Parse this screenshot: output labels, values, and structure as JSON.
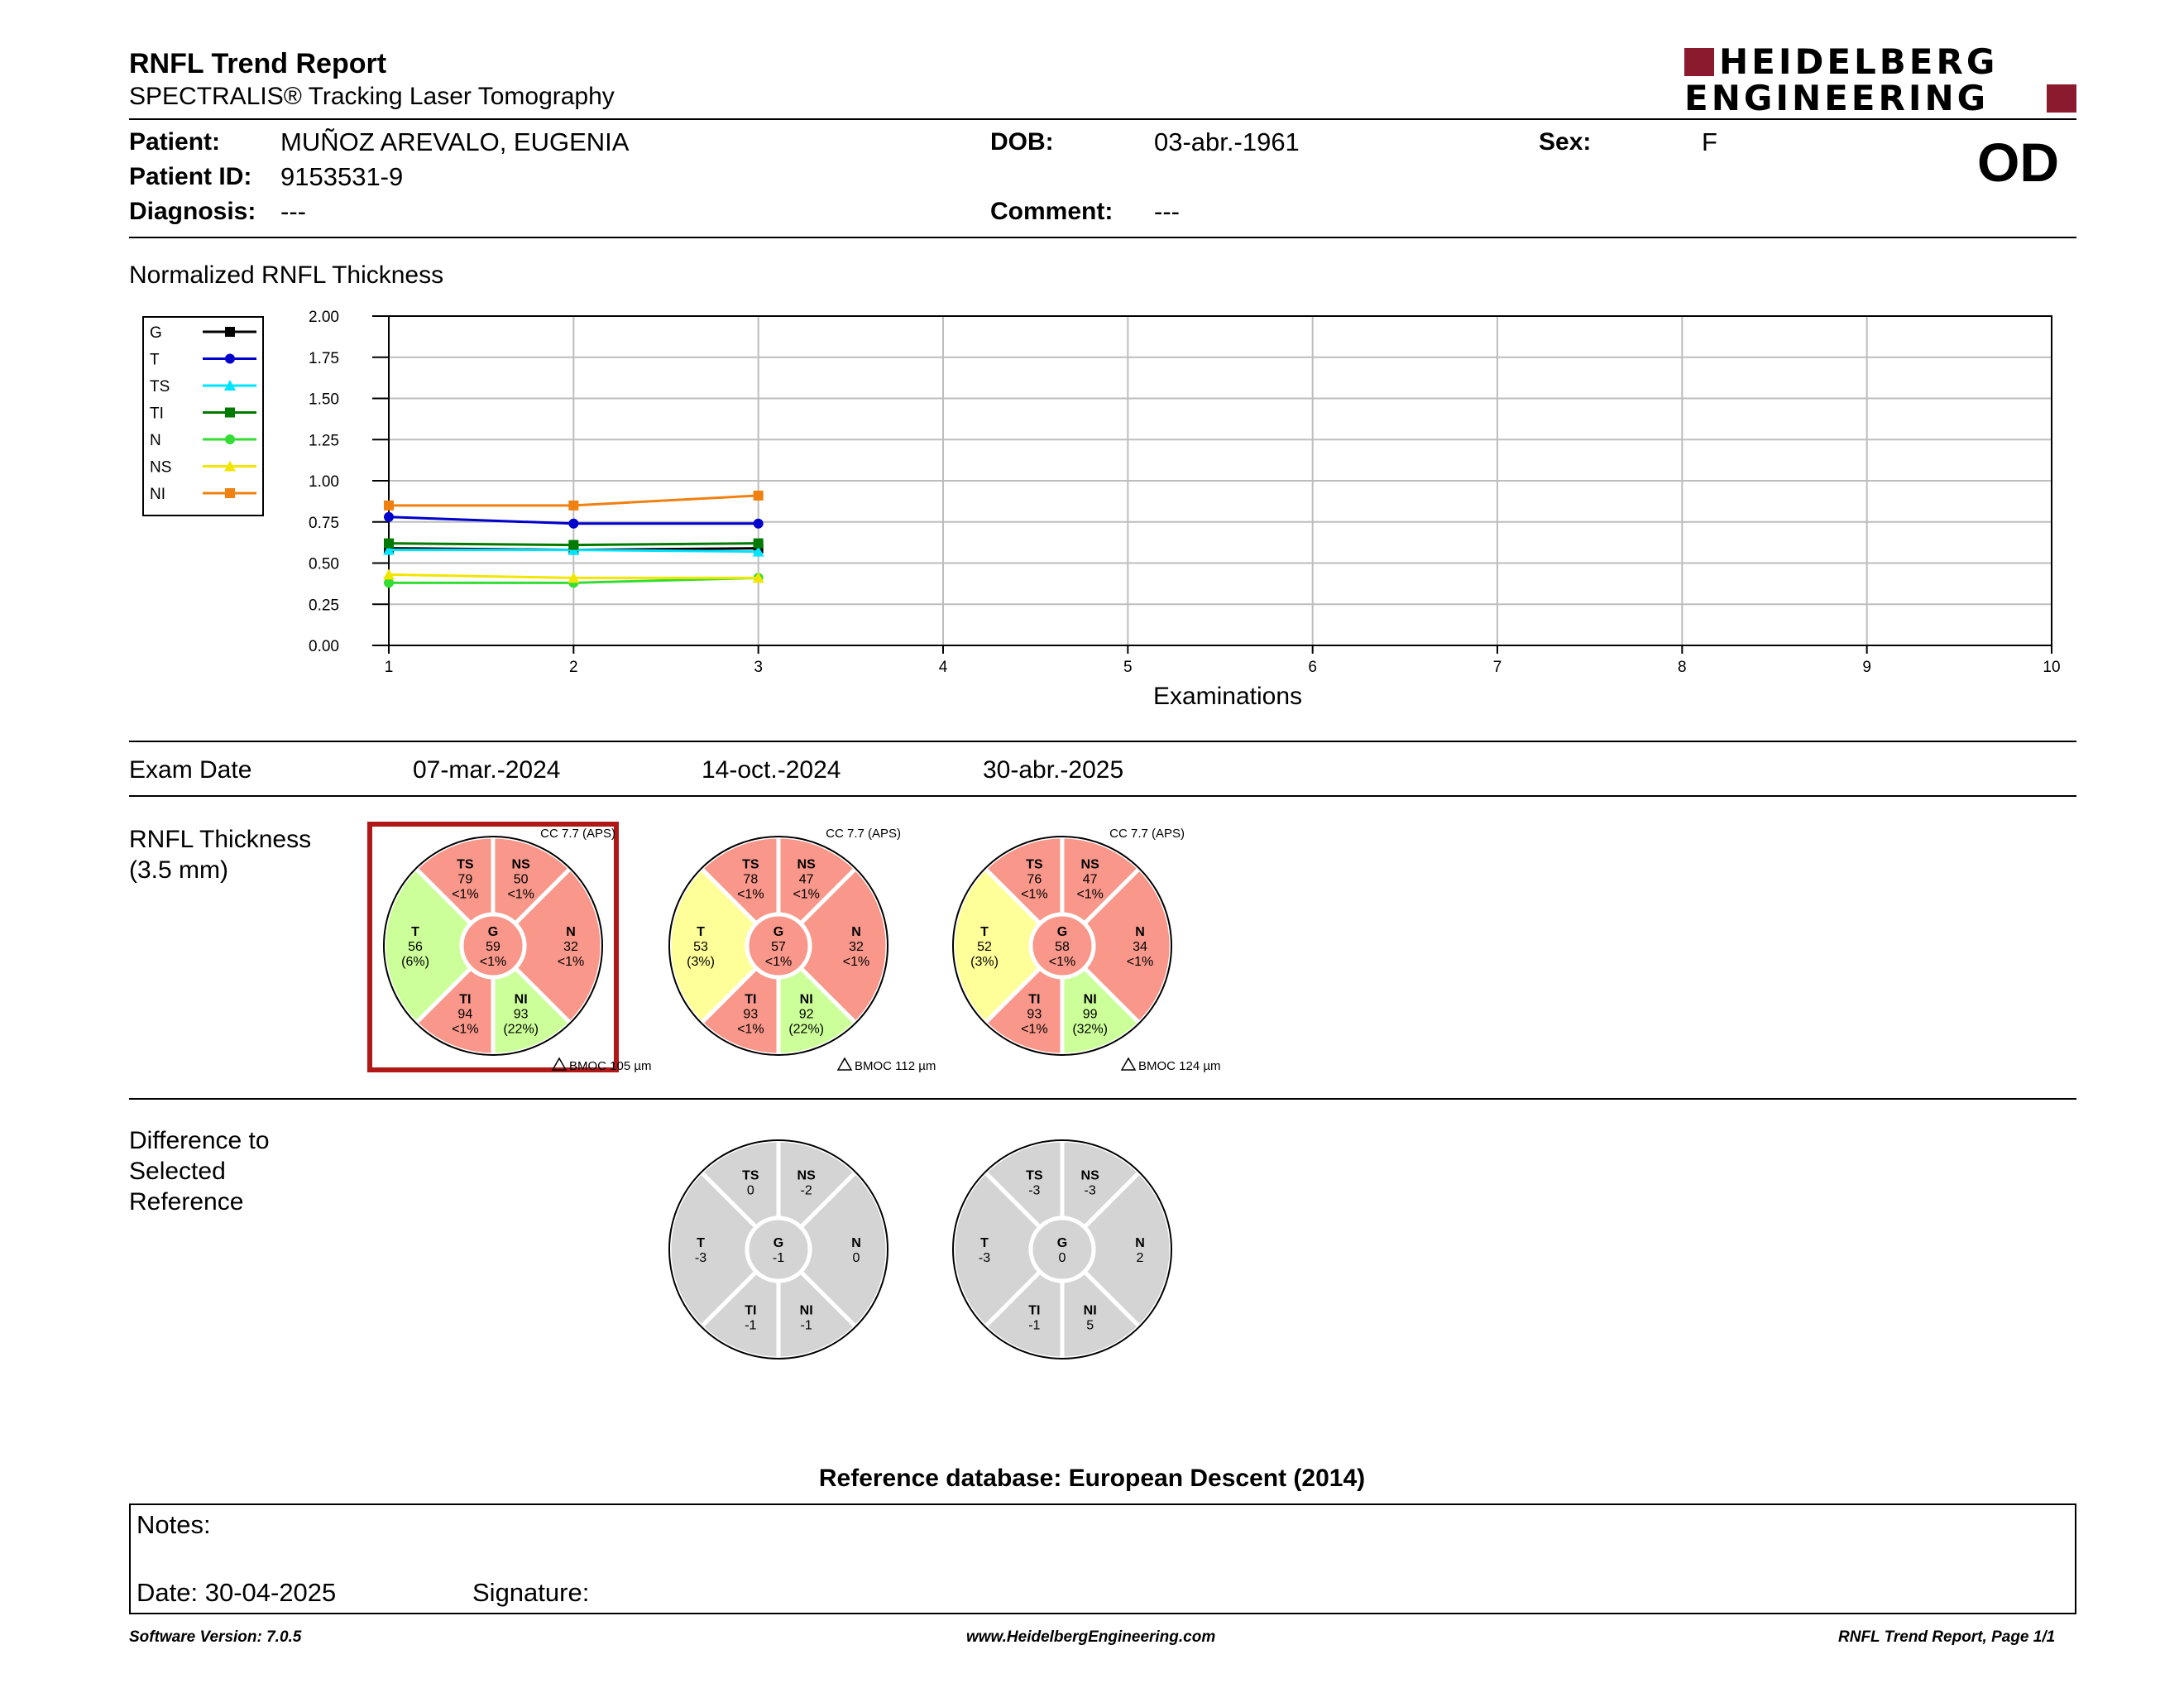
{
  "header": {
    "title": "RNFL Trend Report",
    "subtitle": "SPECTRALIS® Tracking Laser Tomography",
    "brand_line1": "HEIDELBERG",
    "brand_line2": "ENGINEERING",
    "brand_color": "#8b1a2e",
    "eye": "OD"
  },
  "patient": {
    "name_label": "Patient:",
    "name": "MUÑOZ AREVALO, EUGENIA",
    "id_label": "Patient ID:",
    "id": "9153531-9",
    "diagnosis_label": "Diagnosis:",
    "diagnosis": "---",
    "dob_label": "DOB:",
    "dob": "03-abr.-1961",
    "comment_label": "Comment:",
    "comment": "---",
    "sex_label": "Sex:",
    "sex": "F"
  },
  "chart_section": {
    "title": "Normalized RNFL Thickness"
  },
  "chart_data": {
    "type": "line",
    "title": "Normalized RNFL Thickness",
    "xlabel": "Examinations",
    "ylabel": "",
    "x_ticks": [
      1,
      2,
      3,
      4,
      5,
      6,
      7,
      8,
      9,
      10
    ],
    "y_ticks": [
      "0.00",
      "0.25",
      "0.50",
      "0.75",
      "1.00",
      "1.25",
      "1.50",
      "1.75",
      "2.00"
    ],
    "xlim": [
      1,
      10
    ],
    "ylim": [
      0,
      2
    ],
    "grid": true,
    "legend_position": "left",
    "x": [
      1,
      2,
      3
    ],
    "series": [
      {
        "name": "G",
        "color": "#000000",
        "marker": "square",
        "values": [
          0.59,
          0.58,
          0.59
        ]
      },
      {
        "name": "T",
        "color": "#0000cc",
        "marker": "circle",
        "values": [
          0.78,
          0.74,
          0.74
        ]
      },
      {
        "name": "TS",
        "color": "#00e5ff",
        "marker": "triangle",
        "values": [
          0.58,
          0.58,
          0.57
        ]
      },
      {
        "name": "TI",
        "color": "#007a00",
        "marker": "square",
        "values": [
          0.62,
          0.61,
          0.62
        ]
      },
      {
        "name": "N",
        "color": "#33dd33",
        "marker": "circle",
        "values": [
          0.38,
          0.38,
          0.41
        ]
      },
      {
        "name": "NS",
        "color": "#f2e600",
        "marker": "triangle",
        "values": [
          0.43,
          0.41,
          0.41
        ]
      },
      {
        "name": "NI",
        "color": "#f08010",
        "marker": "square",
        "values": [
          0.85,
          0.85,
          0.91
        ]
      }
    ]
  },
  "exam_dates": {
    "label": "Exam Date",
    "dates": [
      "07-mar.-2024",
      "14-oct.-2024",
      "30-abr.-2025"
    ]
  },
  "rnfl_section": {
    "title_line1": "RNFL Thickness",
    "title_line2": "(3.5 mm)"
  },
  "diff_section": {
    "line1": "Difference to",
    "line2": "Selected",
    "line3": "Reference"
  },
  "sector_colors": {
    "red": "#f8978a",
    "yellow": "#ffff99",
    "green": "#ccff99",
    "gray": "#d4d4d4",
    "selected_frame": "#b01818"
  },
  "thickness_circles": [
    {
      "cc": "CC 7.7 (APS)",
      "bmoc": "BMOC 105 µm",
      "selected": true,
      "sectors": {
        "TS": {
          "label": "TS",
          "value": "79",
          "pct": "<1%",
          "cls": "red"
        },
        "NS": {
          "label": "NS",
          "value": "50",
          "pct": "<1%",
          "cls": "red"
        },
        "N": {
          "label": "N",
          "value": "32",
          "pct": "<1%",
          "cls": "red"
        },
        "NI": {
          "label": "NI",
          "value": "93",
          "pct": "(22%)",
          "cls": "green"
        },
        "TI": {
          "label": "TI",
          "value": "94",
          "pct": "<1%",
          "cls": "red"
        },
        "T": {
          "label": "T",
          "value": "56",
          "pct": "(6%)",
          "cls": "green"
        },
        "G": {
          "label": "G",
          "value": "59",
          "pct": "<1%",
          "cls": "red"
        }
      }
    },
    {
      "cc": "CC 7.7 (APS)",
      "bmoc": "BMOC 112 µm",
      "selected": false,
      "sectors": {
        "TS": {
          "label": "TS",
          "value": "78",
          "pct": "<1%",
          "cls": "red"
        },
        "NS": {
          "label": "NS",
          "value": "47",
          "pct": "<1%",
          "cls": "red"
        },
        "N": {
          "label": "N",
          "value": "32",
          "pct": "<1%",
          "cls": "red"
        },
        "NI": {
          "label": "NI",
          "value": "92",
          "pct": "(22%)",
          "cls": "green"
        },
        "TI": {
          "label": "TI",
          "value": "93",
          "pct": "<1%",
          "cls": "red"
        },
        "T": {
          "label": "T",
          "value": "53",
          "pct": "(3%)",
          "cls": "yellow"
        },
        "G": {
          "label": "G",
          "value": "57",
          "pct": "<1%",
          "cls": "red"
        }
      }
    },
    {
      "cc": "CC 7.7 (APS)",
      "bmoc": "BMOC 124 µm",
      "selected": false,
      "sectors": {
        "TS": {
          "label": "TS",
          "value": "76",
          "pct": "<1%",
          "cls": "red"
        },
        "NS": {
          "label": "NS",
          "value": "47",
          "pct": "<1%",
          "cls": "red"
        },
        "N": {
          "label": "N",
          "value": "34",
          "pct": "<1%",
          "cls": "red"
        },
        "NI": {
          "label": "NI",
          "value": "99",
          "pct": "(32%)",
          "cls": "green"
        },
        "TI": {
          "label": "TI",
          "value": "93",
          "pct": "<1%",
          "cls": "red"
        },
        "T": {
          "label": "T",
          "value": "52",
          "pct": "(3%)",
          "cls": "yellow"
        },
        "G": {
          "label": "G",
          "value": "58",
          "pct": "<1%",
          "cls": "red"
        }
      }
    }
  ],
  "difference_circles": [
    {
      "sectors": {
        "TS": {
          "label": "TS",
          "value": "0"
        },
        "NS": {
          "label": "NS",
          "value": "-2"
        },
        "N": {
          "label": "N",
          "value": "0"
        },
        "NI": {
          "label": "NI",
          "value": "-1"
        },
        "TI": {
          "label": "TI",
          "value": "-1"
        },
        "T": {
          "label": "T",
          "value": "-3"
        },
        "G": {
          "label": "G",
          "value": "-1"
        }
      }
    },
    {
      "sectors": {
        "TS": {
          "label": "TS",
          "value": "-3"
        },
        "NS": {
          "label": "NS",
          "value": "-3"
        },
        "N": {
          "label": "N",
          "value": "2"
        },
        "NI": {
          "label": "NI",
          "value": "5"
        },
        "TI": {
          "label": "TI",
          "value": "-1"
        },
        "T": {
          "label": "T",
          "value": "-3"
        },
        "G": {
          "label": "G",
          "value": "0"
        }
      }
    }
  ],
  "reference_db": "Reference database: European Descent (2014)",
  "notes": {
    "notes_label": "Notes:",
    "date_label": "Date: 30-04-2025",
    "signature_label": "Signature:"
  },
  "footer": {
    "left": "Software Version: 7.0.5",
    "center": "www.HeidelbergEngineering.com",
    "right": "RNFL Trend Report, Page 1/1"
  }
}
